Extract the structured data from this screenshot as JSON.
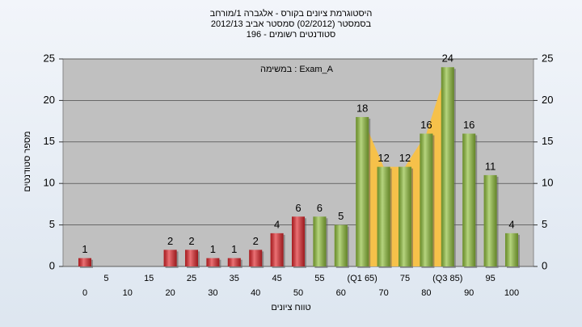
{
  "chart_data": {
    "type": "bar",
    "title": "היסטוגרמת ציונים בקורס - אלגברה 1/מורחב",
    "subtitle": "בסמסטר  (02/2012)  סמסטר אביב 2012/13",
    "subtitle2": "סטודנטים רשומים - 196",
    "annotation": "במשימה : Exam_A",
    "x_label": "טווח ציונים",
    "y_label": "מספר סטודנטים",
    "categories": [
      "0",
      "5",
      "10",
      "15",
      "20",
      "25",
      "30",
      "35",
      "40",
      "45",
      "50",
      "55",
      "60",
      "(Q1 65)",
      "70",
      "75",
      "80",
      "(Q3 85)",
      "90",
      "95",
      "100"
    ],
    "values": [
      1,
      0,
      0,
      0,
      2,
      2,
      1,
      1,
      2,
      4,
      6,
      6,
      5,
      18,
      12,
      12,
      16,
      24,
      16,
      11,
      4
    ],
    "colors": [
      "#e0262b",
      "#e0262b",
      "#e0262b",
      "#e0262b",
      "#e0262b",
      "#e0262b",
      "#e0262b",
      "#e0262b",
      "#e0262b",
      "#e0262b",
      "#e0262b",
      "#8fbe3a",
      "#8fbe3a",
      "#8fbe3a",
      "#8fbe3a",
      "#8fbe3a",
      "#8fbe3a",
      "#8fbe3a",
      "#8fbe3a",
      "#8fbe3a",
      "#8fbe3a"
    ],
    "quartile_area_color": "#f6c14a",
    "ylim": [
      0,
      25
    ],
    "yticks": [
      0,
      5,
      10,
      15,
      20,
      25
    ],
    "y2lim": [
      0,
      25
    ],
    "y2ticks": [
      0,
      5,
      10,
      15,
      20,
      25
    ],
    "grid": true
  }
}
